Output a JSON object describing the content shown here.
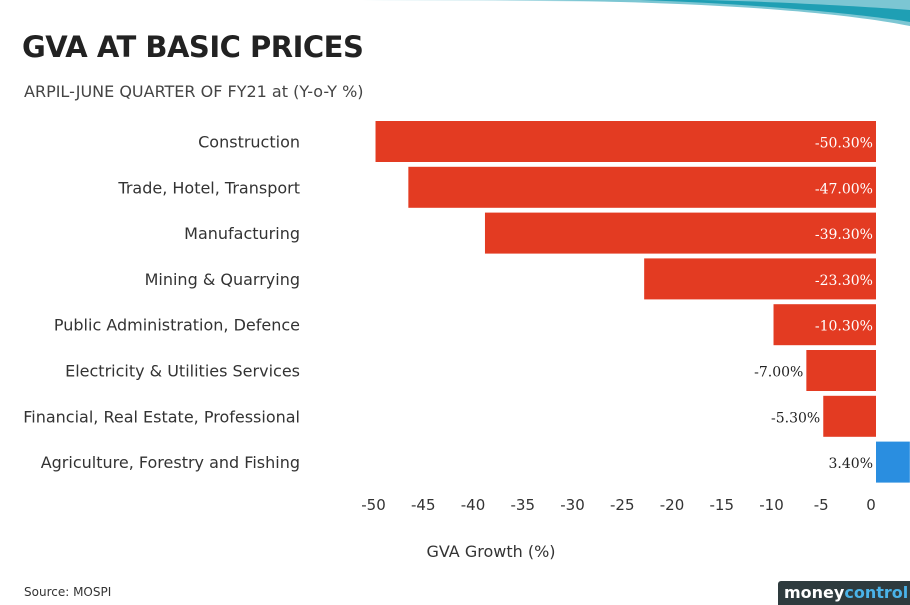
{
  "header": {
    "title": "GVA AT BASIC PRICES",
    "subtitle": "ARPIL-JUNE QUARTER OF FY21 at (Y-o-Y %)"
  },
  "footer": {
    "source": "Source: MOSPI",
    "brand_part1": "money",
    "brand_part2": "control"
  },
  "colors": {
    "negative": "#e33b22",
    "positive": "#2a8ee0",
    "brand_bg": "#2e3b3e",
    "brand_accent": "#4ab3e8"
  },
  "chart_data": {
    "type": "bar",
    "orientation": "horizontal",
    "title": "GVA AT BASIC PRICES",
    "subtitle": "ARPIL-JUNE QUARTER OF FY21 at (Y-o-Y %)",
    "xlabel": "GVA Growth (%)",
    "ylabel": "",
    "xlim": [
      -50,
      5
    ],
    "xticks": [
      -50,
      -45,
      -40,
      -35,
      -30,
      -25,
      -20,
      -15,
      -10,
      -5,
      0
    ],
    "grid": false,
    "categories": [
      "Construction",
      "Trade, Hotel, Transport",
      "Manufacturing",
      "Mining & Quarrying",
      "Public Administration, Defence",
      "Electricity & Utilities Services",
      "Financial, Real Estate, Professional",
      "Agriculture, Forestry and Fishing"
    ],
    "values": [
      -50.3,
      -47.0,
      -39.3,
      -23.3,
      -10.3,
      -7.0,
      -5.3,
      3.4
    ],
    "data_labels": [
      "-50.30%",
      "-47.00%",
      "-39.30%",
      "-23.30%",
      "-10.30%",
      "-7.00%",
      "-5.30%",
      "3.40%"
    ]
  }
}
